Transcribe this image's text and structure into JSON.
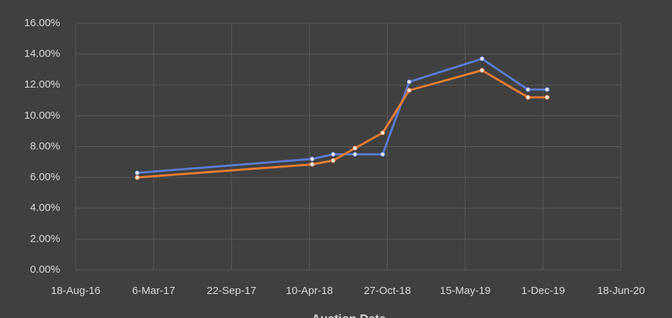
{
  "chart_data": {
    "type": "line",
    "x_label": "Auction Date",
    "x": [
      "2017-01-23",
      "2018-04-17",
      "2018-06-10",
      "2018-08-05",
      "2018-10-15",
      "2018-12-22",
      "2019-06-27",
      "2019-10-23",
      "2019-12-11"
    ],
    "series": [
      {
        "color": "#5b7bd5",
        "values": [
          6.3,
          7.2,
          7.5,
          7.5,
          7.5,
          12.2,
          13.7,
          11.7,
          11.7
        ]
      },
      {
        "color": "#ed7d31",
        "values": [
          6.0,
          6.85,
          7.1,
          7.9,
          8.9,
          11.65,
          12.95,
          11.2,
          11.2
        ]
      }
    ],
    "xlim": [
      "2016-08-18",
      "2020-06-18"
    ],
    "xticks": [
      {
        "value": "2016-08-18",
        "label": "18-Aug-16"
      },
      {
        "value": "2017-03-06",
        "label": "6-Mar-17"
      },
      {
        "value": "2017-09-22",
        "label": "22-Sep-17"
      },
      {
        "value": "2018-04-10",
        "label": "10-Apr-18"
      },
      {
        "value": "2018-10-27",
        "label": "27-Oct-18"
      },
      {
        "value": "2019-05-15",
        "label": "15-May-19"
      },
      {
        "value": "2019-12-01",
        "label": "1-Dec-19"
      },
      {
        "value": "2020-06-18",
        "label": "18-Jun-20"
      }
    ],
    "ylim": [
      0,
      16
    ],
    "yticks": [
      {
        "value": 0,
        "label": "0.00%"
      },
      {
        "value": 2,
        "label": "2.00%"
      },
      {
        "value": 4,
        "label": "4.00%"
      },
      {
        "value": 6,
        "label": "6.00%"
      },
      {
        "value": 8,
        "label": "8.00%"
      },
      {
        "value": 10,
        "label": "10.00%"
      },
      {
        "value": 12,
        "label": "12.00%"
      },
      {
        "value": 14,
        "label": "14.00%"
      },
      {
        "value": 16,
        "label": "16.00%"
      }
    ],
    "grid": true
  }
}
